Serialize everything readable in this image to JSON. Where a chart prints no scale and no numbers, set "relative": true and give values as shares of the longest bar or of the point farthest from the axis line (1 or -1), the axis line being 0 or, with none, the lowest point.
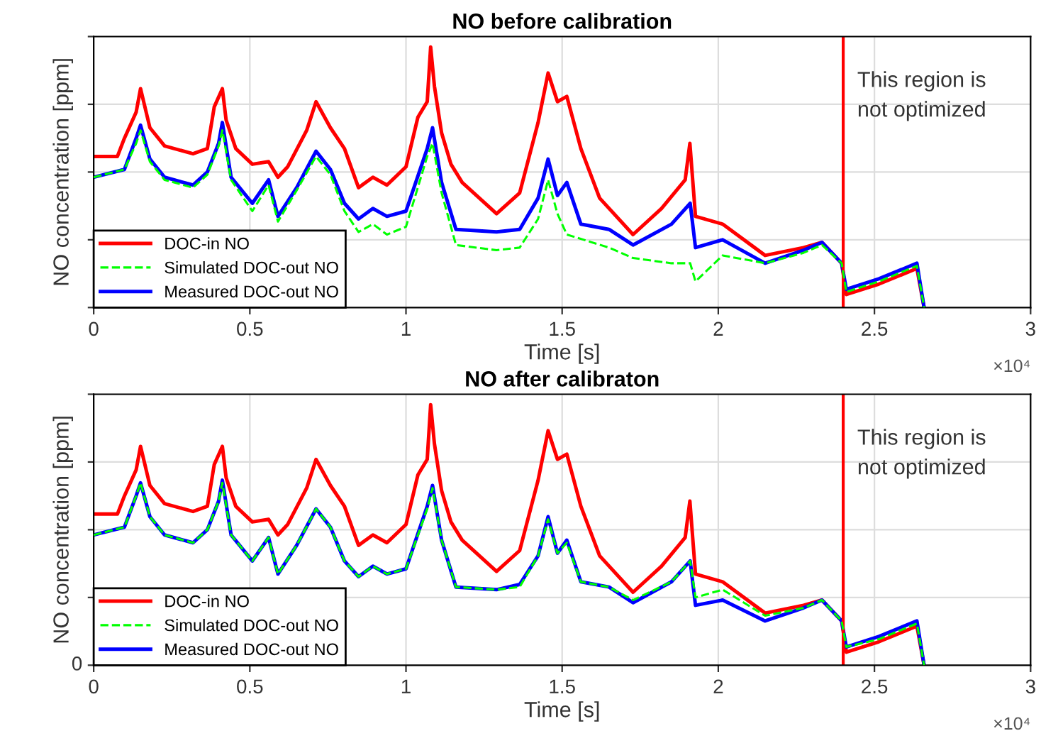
{
  "chart_data": [
    {
      "type": "line",
      "title": "NO before calibration",
      "xlabel": "Time [s]",
      "ylabel": "NO concentration [ppm]",
      "relative": true,
      "grid": true,
      "legend": "bottom left",
      "xlim": [
        0,
        3
      ],
      "xticks": [
        0,
        0.5,
        1,
        1.5,
        2,
        2.5,
        3
      ],
      "ref_lines": [
        {
          "axis": "x",
          "value": 2.4,
          "label": "This region is\nnot optimized",
          "color": "#ff0000"
        }
      ],
      "annotations": [
        "×10⁴"
      ],
      "series": [
        {
          "name": "DOC-in NO",
          "color": "#ff0000",
          "line_style": "solid",
          "x": [
            0,
            0.076,
            0.0985,
            0.136,
            0.15,
            0.18,
            0.227,
            0.318,
            0.364,
            0.386,
            0.412,
            0.424,
            0.455,
            0.508,
            0.56,
            0.59,
            0.621,
            0.682,
            0.712,
            0.758,
            0.803,
            0.848,
            0.894,
            0.939,
            1.0,
            1.038,
            1.068,
            1.079,
            1.091,
            1.114,
            1.144,
            1.18,
            1.29,
            1.364,
            1.423,
            1.455,
            1.485,
            1.515,
            1.56,
            1.62,
            1.727,
            1.818,
            1.894,
            1.909,
            1.927,
            2.014,
            2.15,
            2.273,
            2.332,
            2.395,
            2.41,
            2.514,
            2.636,
            2.659
          ],
          "values": [
            0.58,
            0.58,
            0.65,
            0.75,
            0.84,
            0.69,
            0.62,
            0.59,
            0.61,
            0.77,
            0.84,
            0.72,
            0.61,
            0.55,
            0.56,
            0.5,
            0.54,
            0.68,
            0.79,
            0.69,
            0.61,
            0.46,
            0.5,
            0.47,
            0.54,
            0.73,
            0.79,
            1.0,
            0.85,
            0.67,
            0.55,
            0.48,
            0.36,
            0.44,
            0.71,
            0.9,
            0.79,
            0.81,
            0.61,
            0.42,
            0.28,
            0.38,
            0.49,
            0.63,
            0.35,
            0.32,
            0.2,
            0.23,
            0.25,
            0.17,
            0.05,
            0.09,
            0.15,
            0
          ]
        },
        {
          "name": "Simulated DOC-out NO",
          "color": "#00ff00",
          "line_style": "dashed",
          "x": [
            0,
            0.0985,
            0.136,
            0.15,
            0.18,
            0.227,
            0.318,
            0.364,
            0.4,
            0.412,
            0.44,
            0.508,
            0.56,
            0.59,
            0.65,
            0.712,
            0.758,
            0.803,
            0.848,
            0.894,
            0.939,
            1.0,
            1.068,
            1.085,
            1.114,
            1.16,
            1.29,
            1.364,
            1.423,
            1.455,
            1.485,
            1.515,
            1.65,
            1.727,
            1.85,
            1.91,
            1.927,
            2.014,
            2.15,
            2.273,
            2.332,
            2.395,
            2.41,
            2.514,
            2.636,
            2.659
          ],
          "values": [
            0.5,
            0.53,
            0.63,
            0.68,
            0.56,
            0.49,
            0.46,
            0.51,
            0.62,
            0.68,
            0.49,
            0.37,
            0.47,
            0.33,
            0.45,
            0.58,
            0.51,
            0.37,
            0.29,
            0.32,
            0.28,
            0.31,
            0.58,
            0.63,
            0.44,
            0.24,
            0.22,
            0.23,
            0.34,
            0.49,
            0.36,
            0.28,
            0.23,
            0.19,
            0.17,
            0.17,
            0.1,
            0.2,
            0.17,
            0.21,
            0.24,
            0.17,
            0.06,
            0.1,
            0.16,
            0
          ]
        },
        {
          "name": "Measured DOC-out NO",
          "color": "#0000ff",
          "line_style": "solid",
          "x": [
            0,
            0.0985,
            0.136,
            0.15,
            0.18,
            0.227,
            0.318,
            0.364,
            0.4,
            0.412,
            0.44,
            0.508,
            0.56,
            0.59,
            0.65,
            0.712,
            0.758,
            0.803,
            0.848,
            0.894,
            0.939,
            1.0,
            1.068,
            1.085,
            1.114,
            1.16,
            1.29,
            1.364,
            1.423,
            1.455,
            1.485,
            1.515,
            1.56,
            1.65,
            1.727,
            1.85,
            1.91,
            1.927,
            2.014,
            2.15,
            2.273,
            2.332,
            2.395,
            2.41,
            2.514,
            2.636,
            2.659
          ],
          "values": [
            0.5,
            0.53,
            0.65,
            0.7,
            0.57,
            0.5,
            0.47,
            0.52,
            0.63,
            0.71,
            0.5,
            0.4,
            0.49,
            0.35,
            0.46,
            0.6,
            0.53,
            0.4,
            0.34,
            0.38,
            0.35,
            0.37,
            0.61,
            0.69,
            0.48,
            0.3,
            0.29,
            0.3,
            0.42,
            0.57,
            0.43,
            0.48,
            0.32,
            0.3,
            0.24,
            0.32,
            0.4,
            0.23,
            0.26,
            0.17,
            0.22,
            0.25,
            0.17,
            0.07,
            0.11,
            0.17,
            0
          ]
        }
      ]
    },
    {
      "type": "line",
      "title": "NO after calibraton",
      "xlabel": "Time [s]",
      "ylabel": "NO concentration [ppm]",
      "relative": true,
      "grid": true,
      "legend": "bottom left",
      "xlim": [
        0,
        3
      ],
      "xticks": [
        0,
        0.5,
        1,
        1.5,
        2,
        2.5,
        3
      ],
      "ref_lines": [
        {
          "axis": "x",
          "value": 2.4,
          "label": "This region is\nnot optimized",
          "color": "#ff0000"
        }
      ],
      "annotations": [
        "×10⁴",
        "0"
      ],
      "series": [
        {
          "name": "DOC-in NO",
          "color": "#ff0000",
          "line_style": "solid",
          "x": [
            0,
            0.076,
            0.0985,
            0.136,
            0.15,
            0.18,
            0.227,
            0.318,
            0.364,
            0.386,
            0.412,
            0.424,
            0.455,
            0.508,
            0.56,
            0.59,
            0.621,
            0.682,
            0.712,
            0.758,
            0.803,
            0.848,
            0.894,
            0.939,
            1.0,
            1.038,
            1.068,
            1.079,
            1.091,
            1.114,
            1.144,
            1.18,
            1.29,
            1.364,
            1.423,
            1.455,
            1.485,
            1.515,
            1.56,
            1.62,
            1.727,
            1.818,
            1.894,
            1.909,
            1.927,
            2.014,
            2.15,
            2.273,
            2.332,
            2.395,
            2.41,
            2.514,
            2.636,
            2.659
          ],
          "values": [
            0.58,
            0.58,
            0.65,
            0.75,
            0.84,
            0.69,
            0.62,
            0.59,
            0.61,
            0.77,
            0.84,
            0.72,
            0.61,
            0.55,
            0.56,
            0.5,
            0.54,
            0.68,
            0.79,
            0.69,
            0.61,
            0.46,
            0.5,
            0.47,
            0.54,
            0.73,
            0.79,
            1.0,
            0.85,
            0.67,
            0.55,
            0.48,
            0.36,
            0.44,
            0.71,
            0.9,
            0.79,
            0.81,
            0.61,
            0.42,
            0.28,
            0.38,
            0.49,
            0.63,
            0.35,
            0.32,
            0.2,
            0.23,
            0.25,
            0.17,
            0.05,
            0.09,
            0.15,
            0
          ]
        },
        {
          "name": "Simulated DOC-out NO",
          "color": "#00ff00",
          "line_style": "dashed",
          "x": [
            0,
            0.0985,
            0.136,
            0.15,
            0.18,
            0.227,
            0.318,
            0.364,
            0.4,
            0.412,
            0.44,
            0.508,
            0.56,
            0.59,
            0.65,
            0.712,
            0.758,
            0.803,
            0.848,
            0.894,
            0.939,
            1.0,
            1.068,
            1.085,
            1.114,
            1.16,
            1.29,
            1.364,
            1.423,
            1.455,
            1.485,
            1.515,
            1.56,
            1.65,
            1.727,
            1.85,
            1.91,
            1.927,
            2.014,
            2.15,
            2.273,
            2.332,
            2.395,
            2.41,
            2.514,
            2.636,
            2.659
          ],
          "values": [
            0.5,
            0.53,
            0.65,
            0.7,
            0.57,
            0.5,
            0.47,
            0.52,
            0.63,
            0.7,
            0.5,
            0.4,
            0.49,
            0.35,
            0.46,
            0.6,
            0.53,
            0.4,
            0.34,
            0.38,
            0.35,
            0.37,
            0.6,
            0.68,
            0.48,
            0.3,
            0.29,
            0.3,
            0.42,
            0.56,
            0.43,
            0.47,
            0.32,
            0.3,
            0.25,
            0.32,
            0.4,
            0.26,
            0.29,
            0.19,
            0.22,
            0.25,
            0.17,
            0.07,
            0.1,
            0.16,
            0
          ]
        },
        {
          "name": "Measured DOC-out NO",
          "color": "#0000ff",
          "line_style": "solid",
          "x": [
            0,
            0.0985,
            0.136,
            0.15,
            0.18,
            0.227,
            0.318,
            0.364,
            0.4,
            0.412,
            0.44,
            0.508,
            0.56,
            0.59,
            0.65,
            0.712,
            0.758,
            0.803,
            0.848,
            0.894,
            0.939,
            1.0,
            1.068,
            1.085,
            1.114,
            1.16,
            1.29,
            1.364,
            1.423,
            1.455,
            1.485,
            1.515,
            1.56,
            1.65,
            1.727,
            1.85,
            1.91,
            1.927,
            2.014,
            2.15,
            2.273,
            2.332,
            2.395,
            2.41,
            2.514,
            2.636,
            2.659
          ],
          "values": [
            0.5,
            0.53,
            0.65,
            0.7,
            0.57,
            0.5,
            0.47,
            0.52,
            0.63,
            0.71,
            0.5,
            0.4,
            0.49,
            0.35,
            0.46,
            0.6,
            0.53,
            0.4,
            0.34,
            0.38,
            0.35,
            0.37,
            0.61,
            0.69,
            0.48,
            0.3,
            0.29,
            0.31,
            0.42,
            0.57,
            0.43,
            0.48,
            0.32,
            0.3,
            0.24,
            0.32,
            0.4,
            0.23,
            0.25,
            0.17,
            0.22,
            0.25,
            0.17,
            0.07,
            0.11,
            0.17,
            0
          ]
        }
      ]
    }
  ]
}
